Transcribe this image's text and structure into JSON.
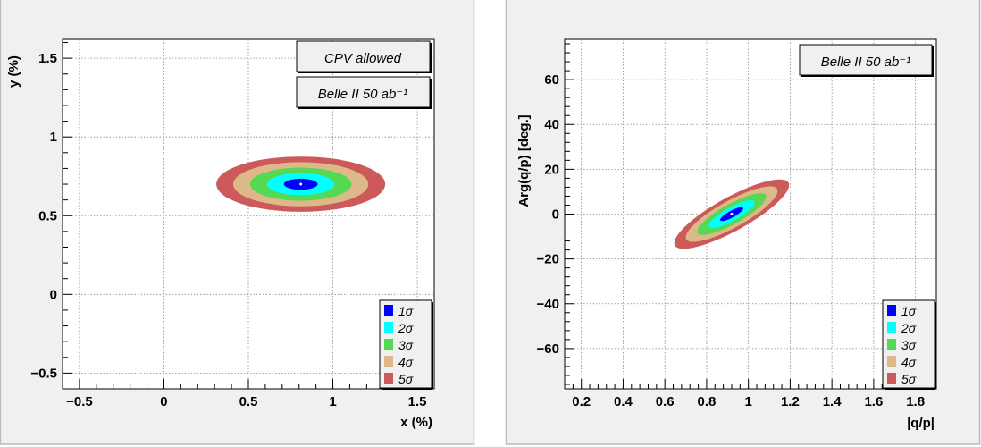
{
  "colors": {
    "sigma1": "#0000ff",
    "sigma2": "#00ffff",
    "sigma3": "#55d955",
    "sigma4": "#ddb888",
    "sigma5": "#cc5a5a",
    "frame_fill": "#f0f0f0",
    "frame_border": "#bbbbbb",
    "grid": "#888888"
  },
  "chart_data": [
    {
      "type": "contour",
      "xlabel": "x (%)",
      "ylabel": "y (%)",
      "xlim": [
        -0.6,
        1.6
      ],
      "ylim": [
        -0.6,
        1.62
      ],
      "xticks": [
        -0.5,
        0,
        0.5,
        1,
        1.5
      ],
      "yticks": [
        -0.5,
        0,
        0.5,
        1,
        1.5
      ],
      "grid": true,
      "labels": [
        "CPV allowed",
        "Belle II 50 ab⁻¹"
      ],
      "label_placement": "top-right",
      "legend_placement": "bottom-right",
      "center": [
        0.81,
        0.7
      ],
      "contours": [
        {
          "name": "1σ",
          "rx": 0.1,
          "ry": 0.035
        },
        {
          "name": "2σ",
          "rx": 0.2,
          "ry": 0.07
        },
        {
          "name": "3σ",
          "rx": 0.3,
          "ry": 0.105
        },
        {
          "name": "4σ",
          "rx": 0.4,
          "ry": 0.14
        },
        {
          "name": "5σ",
          "rx": 0.5,
          "ry": 0.175
        }
      ]
    },
    {
      "type": "contour",
      "xlabel": "|q/p|",
      "ylabel": "Arg(q/p) [deg.]",
      "xlim": [
        0.12,
        1.9
      ],
      "ylim": [
        -78,
        78
      ],
      "xticks": [
        0.2,
        0.4,
        0.6,
        0.8,
        1,
        1.2,
        1.4,
        1.6,
        1.8
      ],
      "yticks": [
        -60,
        -40,
        -20,
        0,
        20,
        40,
        60
      ],
      "grid": true,
      "labels": [
        "Belle II 50 ab⁻¹"
      ],
      "label_placement": "top-right",
      "legend_placement": "bottom-right",
      "center": [
        0.92,
        0
      ],
      "tilt_deg_per_unit": 47,
      "contours": [
        {
          "name": "1σ",
          "a": 0.055,
          "b": 1.7
        },
        {
          "name": "2σ",
          "a": 0.11,
          "b": 3.4
        },
        {
          "name": "3σ",
          "a": 0.165,
          "b": 5.1
        },
        {
          "name": "4σ",
          "a": 0.22,
          "b": 6.8
        },
        {
          "name": "5σ",
          "a": 0.275,
          "b": 8.5
        }
      ]
    }
  ]
}
